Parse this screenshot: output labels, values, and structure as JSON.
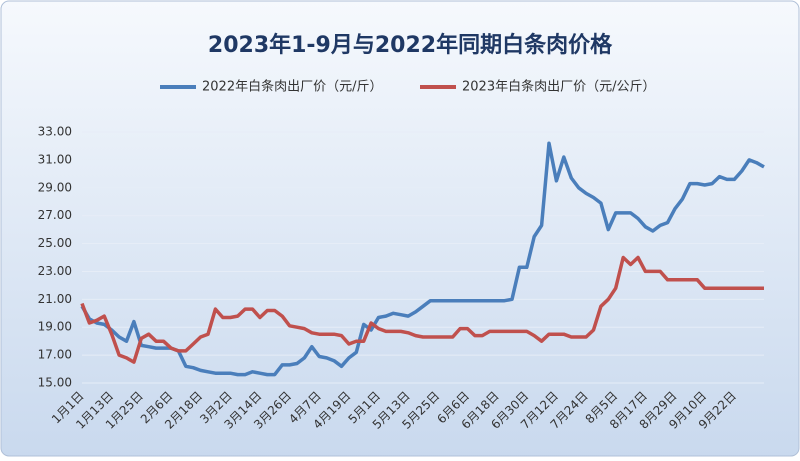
{
  "chart_data": {
    "type": "line",
    "title": "2023年1-9月与2022年同期白条肉价格",
    "categories": [
      "1月1日",
      null,
      null,
      null,
      "1月13日",
      null,
      null,
      null,
      "1月25日",
      null,
      null,
      null,
      "2月6日",
      null,
      null,
      null,
      "2月18日",
      null,
      null,
      null,
      "3月2日",
      null,
      null,
      null,
      "3月14日",
      null,
      null,
      null,
      "3月26日",
      null,
      null,
      null,
      "4月7日",
      null,
      null,
      null,
      "4月19日",
      null,
      null,
      null,
      "5月1日",
      null,
      null,
      null,
      "5月13日",
      null,
      null,
      null,
      "5月25日",
      null,
      null,
      null,
      "6月6日",
      null,
      null,
      null,
      "6月18日",
      null,
      null,
      null,
      "6月30日",
      null,
      null,
      null,
      "7月12日",
      null,
      null,
      null,
      "7月24日",
      null,
      null,
      null,
      "8月5日",
      null,
      null,
      null,
      "8月17日",
      null,
      null,
      null,
      "8月29日",
      null,
      null,
      null,
      "9月10日",
      null,
      null,
      null,
      "9月22日",
      null,
      null,
      null,
      null
    ],
    "series": [
      {
        "name": "2022年白条肉出厂价（元/斤）",
        "color": "#4a7ebb",
        "values": [
          20.5,
          19.6,
          19.3,
          19.2,
          18.8,
          18.3,
          18.0,
          19.4,
          17.7,
          17.6,
          17.5,
          17.5,
          17.5,
          17.3,
          16.2,
          16.1,
          15.9,
          15.8,
          15.7,
          15.7,
          15.7,
          15.6,
          15.6,
          15.8,
          15.7,
          15.6,
          15.6,
          16.3,
          16.3,
          16.4,
          16.8,
          17.6,
          16.9,
          16.8,
          16.6,
          16.2,
          16.8,
          17.2,
          19.2,
          18.8,
          19.7,
          19.8,
          20.0,
          19.9,
          19.8,
          20.1,
          20.5,
          20.9,
          20.9,
          20.9,
          20.9,
          20.9,
          20.9,
          20.9,
          20.9,
          20.9,
          20.9,
          20.9,
          21.0,
          23.3,
          23.3,
          25.5,
          26.3,
          32.2,
          29.5,
          31.2,
          29.7,
          29.0,
          28.6,
          28.3,
          27.9,
          26.0,
          27.2,
          27.2,
          27.2,
          26.8,
          26.2,
          25.9,
          26.3,
          26.5,
          27.5,
          28.2,
          29.3,
          29.3,
          29.2,
          29.3,
          29.8,
          29.6,
          29.6,
          30.2,
          31.0,
          30.8,
          30.5
        ]
      },
      {
        "name": "2023年白条肉出厂价（元/公斤）",
        "color": "#c0504d",
        "values": [
          20.7,
          19.3,
          19.5,
          19.8,
          18.5,
          17.0,
          16.8,
          16.5,
          18.2,
          18.5,
          18.0,
          18.0,
          17.5,
          17.3,
          17.3,
          17.8,
          18.3,
          18.5,
          20.3,
          19.7,
          19.7,
          19.8,
          20.3,
          20.3,
          19.7,
          20.2,
          20.2,
          19.8,
          19.1,
          19.0,
          18.9,
          18.6,
          18.5,
          18.5,
          18.5,
          18.4,
          17.8,
          18.0,
          18.0,
          19.3,
          18.9,
          18.7,
          18.7,
          18.7,
          18.6,
          18.4,
          18.3,
          18.3,
          18.3,
          18.3,
          18.3,
          18.9,
          18.9,
          18.4,
          18.4,
          18.7,
          18.7,
          18.7,
          18.7,
          18.7,
          18.7,
          18.4,
          18.0,
          18.5,
          18.5,
          18.5,
          18.3,
          18.3,
          18.3,
          18.8,
          20.5,
          21.0,
          21.8,
          24.0,
          23.5,
          24.0,
          23.0,
          23.0,
          23.0,
          22.4,
          22.4,
          22.4,
          22.4,
          22.4,
          21.8,
          21.8,
          21.8,
          21.8,
          21.8,
          21.8,
          21.8,
          21.8,
          21.8
        ]
      }
    ],
    "ylim": [
      15,
      33
    ],
    "yticks": [
      {
        "value": 15,
        "label": "15.00"
      },
      {
        "value": 17,
        "label": "17.00"
      },
      {
        "value": 19,
        "label": "19.00"
      },
      {
        "value": 21,
        "label": "21.00"
      },
      {
        "value": 23,
        "label": "23.00"
      },
      {
        "value": 25,
        "label": "25.00"
      },
      {
        "value": 27,
        "label": "27.00"
      },
      {
        "value": 29,
        "label": "29.00"
      },
      {
        "value": 31,
        "label": "31.00"
      },
      {
        "value": 33,
        "label": "33.00"
      }
    ],
    "grid": true
  }
}
